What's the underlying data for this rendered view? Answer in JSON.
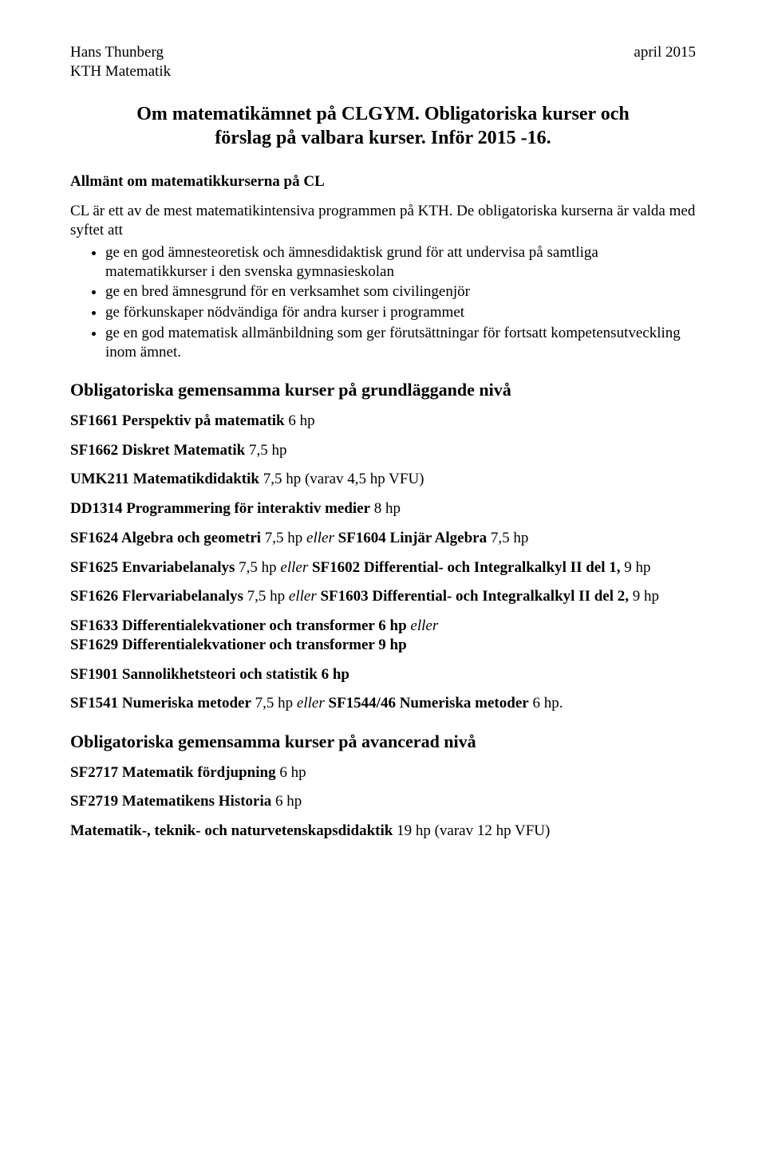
{
  "header": {
    "author": "Hans Thunberg",
    "dept": "KTH Matematik",
    "date": "april 2015"
  },
  "title_line1": "Om matematikämnet på CLGYM. Obligatoriska kurser och",
  "title_line2": "förslag på valbara kurser. Inför 2015 -16.",
  "section_general_heading": "Allmänt om matematikkurserna på CL",
  "general_intro1": "CL är ett av de mest matematikintensiva programmen på KTH. De obligatoriska kurserna är valda med syftet att",
  "bullets": [
    "ge en god ämnesteoretisk och ämnesdidaktisk grund för att undervisa på samtliga matematikkurser i den svenska gymnasieskolan",
    "ge en bred ämnesgrund för en verksamhet som civilingenjör",
    "ge förkunskaper nödvändiga för andra kurser i programmet",
    "ge en god matematisk allmänbildning som ger förutsättningar för fortsatt kompetensutveckling inom ämnet."
  ],
  "section_oblig_basic": "Obligatoriska gemensamma kurser på grundläggande nivå",
  "courses": {
    "sf1661": {
      "bold": "SF1661 Perspektiv på matematik",
      "rest": " 6 hp"
    },
    "sf1662": {
      "bold": "SF1662 Diskret Matematik",
      "rest": " 7,5 hp"
    },
    "umk211": {
      "bold": "UMK211 Matematikdidaktik",
      "rest": " 7,5 hp (varav 4,5 hp VFU)"
    },
    "dd1314": {
      "bold": "DD1314 Programmering för interaktiv medier",
      "rest": " 8 hp"
    },
    "sf1624": {
      "bold1": "SF1624 Algebra och geometri",
      "mid1": " 7,5 hp ",
      "ital": "eller",
      "bold2": " SF1604 Linjär Algebra",
      "rest": " 7,5 hp"
    },
    "sf1625": {
      "bold1": "SF1625 Envariabelanalys",
      "mid1": " 7,5 hp ",
      "ital": "eller",
      "bold2": " SF1602 Differential- och Integralkalkyl II del 1,",
      "rest": " 9 hp"
    },
    "sf1626": {
      "bold1": "SF1626 Flervariabelanalys",
      "mid1": " 7,5 hp ",
      "ital": "eller",
      "bold2": " SF1603 Differential- och Integralkalkyl II del 2,",
      "rest": " 9 hp"
    },
    "sf1633": {
      "bold1": "SF1633 Differentialekvationer och transformer 6 hp ",
      "ital": "eller"
    },
    "sf1629": {
      "bold": "SF1629 Differentialekvationer och transformer 9 hp"
    },
    "sf1901": {
      "bold": "SF1901 Sannolikhetsteori och statistik 6 hp"
    },
    "sf1541": {
      "bold1": "SF1541 Numeriska metoder",
      "mid1": " 7,5 hp  ",
      "ital": "eller",
      "bold2": "  SF1544/46 Numeriska metoder",
      "rest": " 6 hp."
    }
  },
  "section_oblig_adv": "Obligatoriska gemensamma kurser på avancerad nivå",
  "adv_courses": {
    "sf2717": {
      "bold": "SF2717 Matematik fördjupning",
      "rest": " 6 hp"
    },
    "sf2719": {
      "bold": "SF2719 Matematikens Historia",
      "rest": " 6 hp"
    },
    "didaktik": {
      "bold": "Matematik-, teknik- och naturvetenskapsdidaktik",
      "rest": " 19 hp (varav 12 hp VFU)"
    }
  }
}
